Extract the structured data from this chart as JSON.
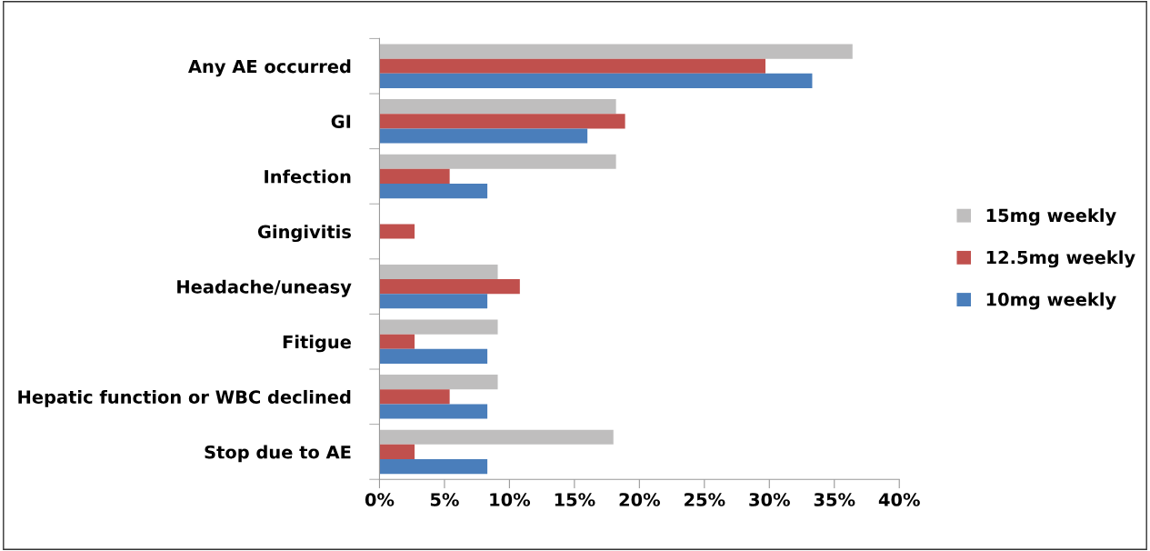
{
  "chart_data": {
    "type": "bar",
    "orientation": "horizontal",
    "categories": [
      "Any AE occurred",
      "GI",
      "Infection",
      "Gingivitis",
      "Headache/uneasy",
      "Fitigue",
      "Hepatic function or WBC declined",
      "Stop due to AE"
    ],
    "series": [
      {
        "name": "15mg weekly",
        "color": "#bfbebe",
        "values": [
          36.4,
          18.2,
          18.2,
          0,
          9.1,
          9.1,
          9.1,
          18.0
        ]
      },
      {
        "name": "12.5mg weekly",
        "color": "#c0504d",
        "values": [
          29.7,
          18.9,
          5.4,
          2.7,
          10.8,
          2.7,
          5.4,
          2.7
        ]
      },
      {
        "name": "10mg weekly",
        "color": "#4a7ebb",
        "values": [
          33.3,
          16.0,
          8.3,
          0,
          8.3,
          8.3,
          8.3,
          8.3
        ]
      }
    ],
    "xlim": [
      0,
      40
    ],
    "xticks": [
      {
        "value": 0,
        "label": "0%"
      },
      {
        "value": 5,
        "label": "5%"
      },
      {
        "value": 10,
        "label": "10%"
      },
      {
        "value": 15,
        "label": "15%"
      },
      {
        "value": 20,
        "label": "20%"
      },
      {
        "value": 25,
        "label": "25%"
      },
      {
        "value": 30,
        "label": "30%"
      },
      {
        "value": 35,
        "label": "35%"
      },
      {
        "value": 40,
        "label": "40%"
      }
    ],
    "grid": false,
    "legend": "right"
  }
}
